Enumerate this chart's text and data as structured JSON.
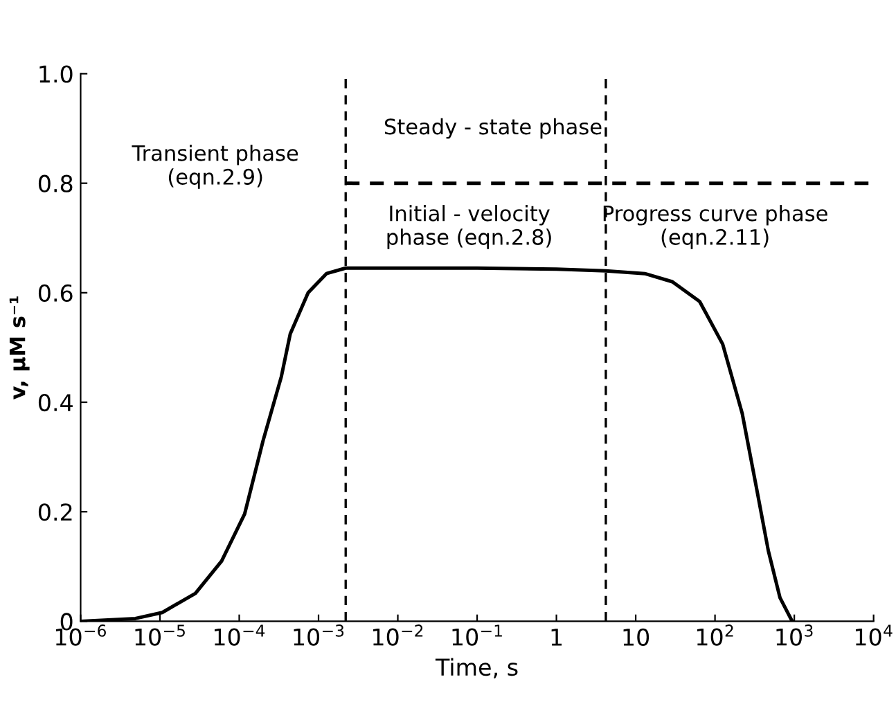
{
  "chart_data": {
    "type": "line",
    "xlabel": "Time, s",
    "ylabel": "v, μM s⁻¹",
    "log": "x",
    "grid": false,
    "legend": false,
    "marker": "none",
    "xlim": [
      1e-06,
      10000
    ],
    "ylim": [
      0,
      1
    ],
    "xticks": [
      {
        "value": 1e-06,
        "label": "10$^{−6}$"
      },
      {
        "value": 1e-05,
        "label": "10$^{−5}$"
      },
      {
        "value": 0.0001,
        "label": "10$^{−4}$"
      },
      {
        "value": 0.001,
        "label": "10$^{−3}$"
      },
      {
        "value": 0.01,
        "label": "10$^{−2}$"
      },
      {
        "value": 0.1,
        "label": "10$^{−1}$"
      },
      1,
      10,
      {
        "value": 100,
        "label": "10$^{2}$"
      },
      {
        "value": 1000,
        "label": "10$^{3}$"
      },
      {
        "value": 10000,
        "label": "10$^{4}$"
      }
    ],
    "yticks": [
      0,
      0.2,
      0.4,
      0.6,
      0.8,
      {
        "value": 1,
        "label": "1.0"
      }
    ],
    "series": [
      {
        "color": "#000000",
        "line_style": "solid",
        "x": [
          1e-06,
          4.9e-06,
          1.07e-05,
          2.8e-05,
          6e-05,
          0.000117,
          0.0002,
          0.00034,
          0.00044,
          0.00074,
          0.00126,
          0.0022,
          0.01,
          0.1,
          1,
          4.2,
          13,
          29,
          64,
          125,
          220,
          330,
          470,
          660,
          940
        ],
        "values": [
          0,
          0.005,
          0.016,
          0.051,
          0.11,
          0.196,
          0.33,
          0.447,
          0.525,
          0.6,
          0.635,
          0.645,
          0.645,
          0.645,
          0.643,
          0.64,
          0.635,
          0.62,
          0.584,
          0.506,
          0.38,
          0.247,
          0.129,
          0.043,
          0
        ]
      },
      {
        "type": "line",
        "color": "#000000",
        "line_style": "dashed",
        "x": [
          0.0022,
          10000
        ],
        "values": [
          0.8,
          0.8
        ]
      }
    ],
    "ref_lines": [
      {
        "axis": "x",
        "value": 0.0022,
        "color": "#000000",
        "line_style": "dashed"
      },
      {
        "axis": "x",
        "value": 4.2,
        "color": "#000000",
        "line_style": "dashed"
      }
    ],
    "annotations": [
      "Transient phase\n(eqn.2.9)",
      "Steady - state phase",
      "Initial - velocity\nphase (eqn.2.8)",
      "Progress curve phase\n(eqn.2.11)"
    ]
  }
}
